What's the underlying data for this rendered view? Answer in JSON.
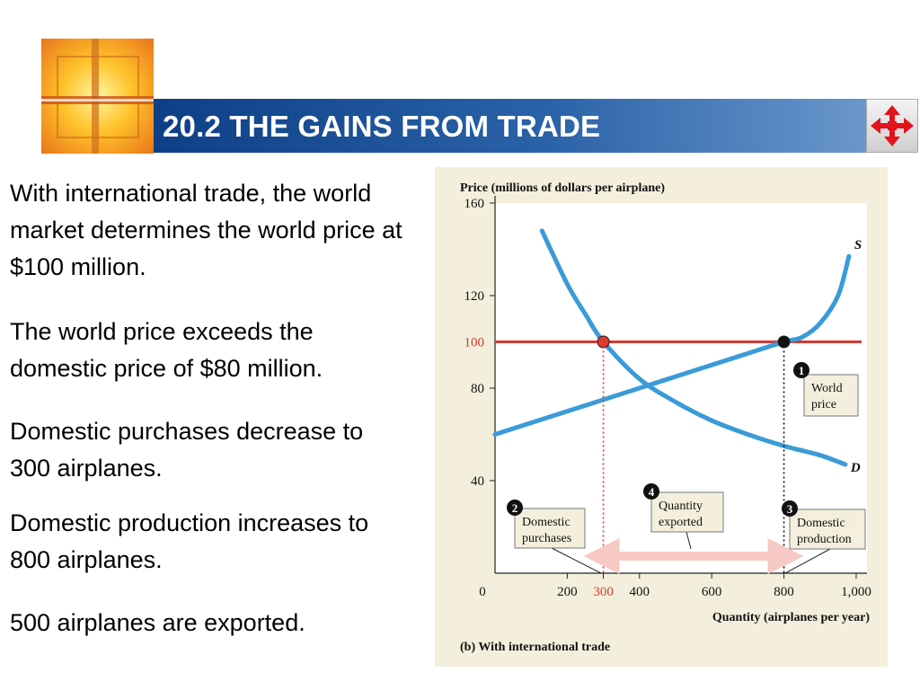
{
  "slide": {
    "title": "20.2  THE GAINS FROM TRADE",
    "bullets": [
      "With international trade, the world market determines the world price at $100 million.",
      "The world price exceeds the domestic price of $80 million.",
      "Domestic purchases decrease to 300 airplanes.",
      "Domestic production increases to 800 airplanes.",
      "500 airplanes are exported."
    ],
    "nav_icon": "four-way-arrow-icon",
    "logo_icon": "cross-window-logo-icon"
  },
  "chart_data": {
    "type": "line",
    "ylabel": "Price (millions of dollars per airplane)",
    "xlabel": "Quantity (airplanes per year)",
    "caption": "(b) With international trade",
    "origin_label": "0",
    "xlim": [
      0,
      1030
    ],
    "ylim": [
      0,
      160
    ],
    "x_ticks": [
      200,
      400,
      600,
      800,
      1000
    ],
    "x_tick_labels": [
      "200",
      "400",
      "600",
      "800",
      "1,000"
    ],
    "x_highlight_value": 300,
    "x_highlight_label": "300",
    "y_ticks": [
      40,
      80,
      120,
      160
    ],
    "y_tick_labels": [
      "40",
      "80",
      "120",
      "160"
    ],
    "y_highlight_value": 100,
    "y_highlight_label": "100",
    "world_price": 100,
    "series": [
      {
        "name": "S",
        "color": "#3a9bd8",
        "x": [
          0,
          200,
          400,
          600,
          700,
          800,
          850,
          900,
          950,
          980
        ],
        "y": [
          60,
          70,
          80,
          90,
          95,
          100,
          102,
          108,
          120,
          137
        ]
      },
      {
        "name": "D",
        "color": "#3a9bd8",
        "x": [
          130,
          200,
          250,
          300,
          400,
          500,
          600,
          700,
          800,
          900,
          970
        ],
        "y": [
          148,
          125,
          112,
          100,
          84,
          74,
          66,
          60,
          55,
          51,
          47
        ]
      }
    ],
    "points": [
      {
        "x": 300,
        "y": 100,
        "color": "#e03a30"
      },
      {
        "x": 800,
        "y": 100,
        "color": "#111111"
      }
    ],
    "annotations": [
      {
        "number": "1",
        "lines": [
          "World",
          "price"
        ]
      },
      {
        "number": "2",
        "lines": [
          "Domestic",
          "purchases"
        ]
      },
      {
        "number": "3",
        "lines": [
          "Domestic",
          "production"
        ]
      },
      {
        "number": "4",
        "lines": [
          "Quantity",
          "exported"
        ]
      }
    ],
    "export_range": [
      300,
      800
    ],
    "colors": {
      "curve": "#3a9bd8",
      "world_price_line": "#d9382f",
      "export_arrow": "#f7c9c4",
      "panel_bg": "#f3efdc",
      "plot_bg": "#ffffff"
    }
  }
}
